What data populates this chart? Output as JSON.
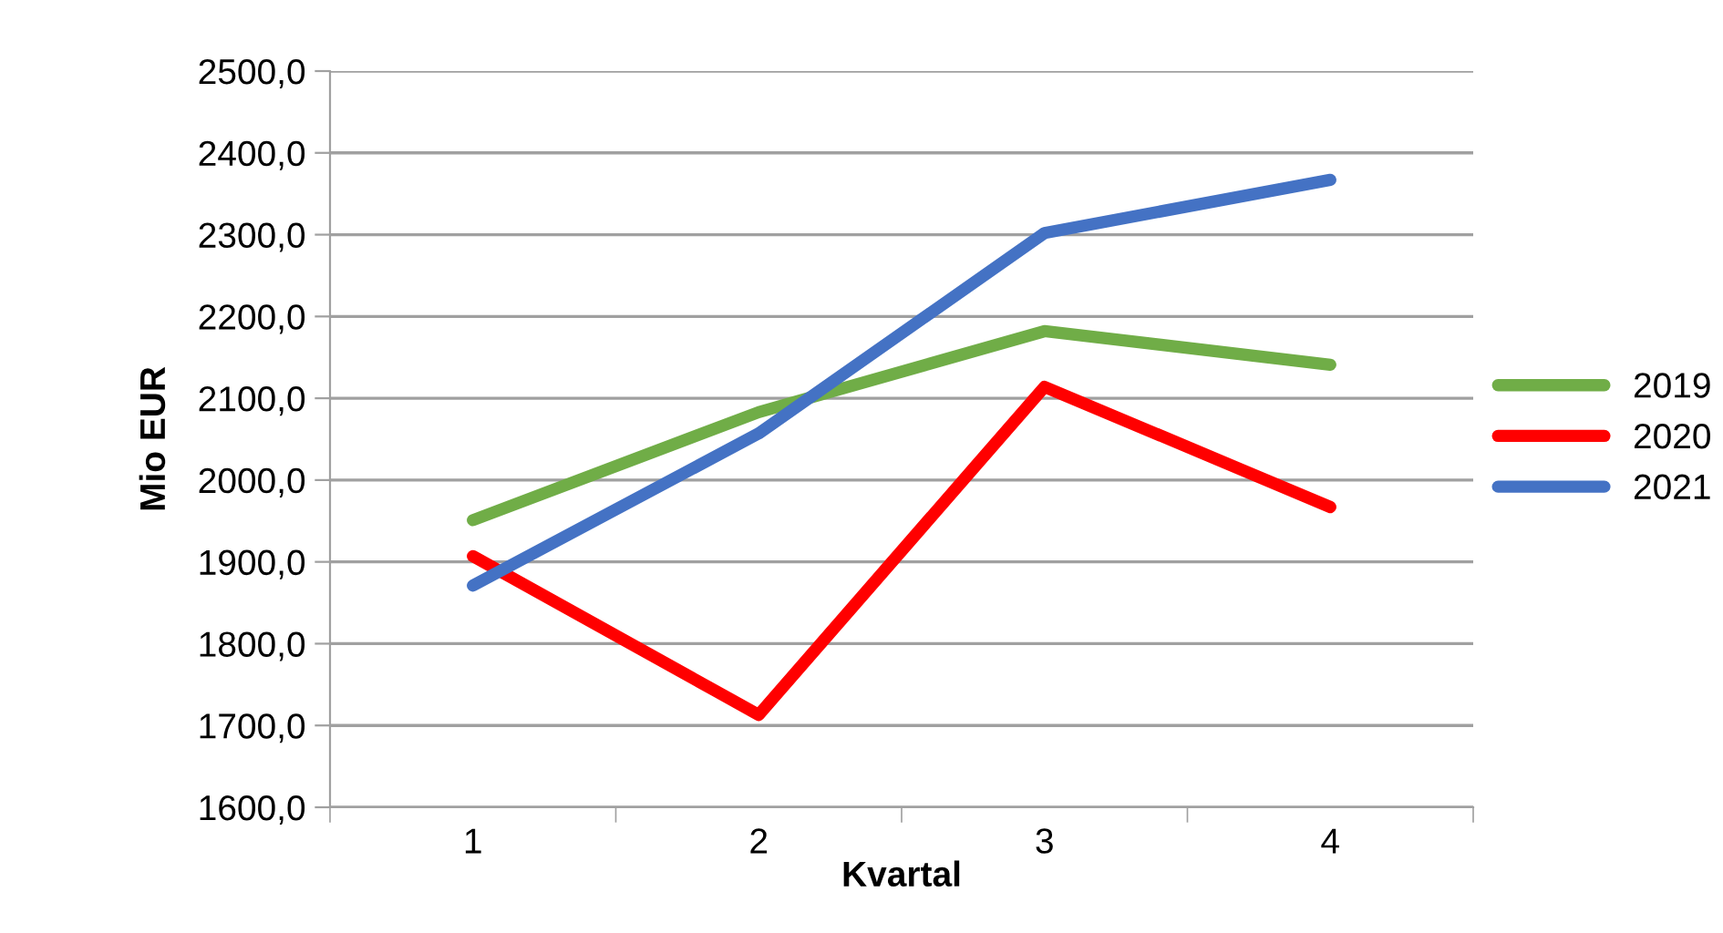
{
  "chart_data": {
    "type": "line",
    "xlabel": "Kvartal",
    "ylabel": "Mio EUR",
    "categories": [
      "1",
      "2",
      "3",
      "4"
    ],
    "series": [
      {
        "name": "2019",
        "color": "#70ad47",
        "values": [
          1951,
          2083,
          2182,
          2141
        ]
      },
      {
        "name": "2020",
        "color": "#ff0000",
        "values": [
          1907,
          1713,
          2114,
          1967
        ]
      },
      {
        "name": "2021",
        "color": "#4472c4",
        "values": [
          1871,
          2057,
          2302,
          2367
        ]
      }
    ],
    "ylim": [
      1600,
      2500
    ],
    "yticks": [
      {
        "value": 1600,
        "label": "1600,0"
      },
      {
        "value": 1700,
        "label": "1700,0"
      },
      {
        "value": 1800,
        "label": "1800,0"
      },
      {
        "value": 1900,
        "label": "1900,0"
      },
      {
        "value": 2000,
        "label": "2000,0"
      },
      {
        "value": 2100,
        "label": "2100,0"
      },
      {
        "value": 2200,
        "label": "2200,0"
      },
      {
        "value": 2300,
        "label": "2300,0"
      },
      {
        "value": 2400,
        "label": "2400,0"
      },
      {
        "value": 2500,
        "label": "2500,0"
      }
    ],
    "grid": "y",
    "legend": "right",
    "marker": "none",
    "line_style": "solid"
  }
}
